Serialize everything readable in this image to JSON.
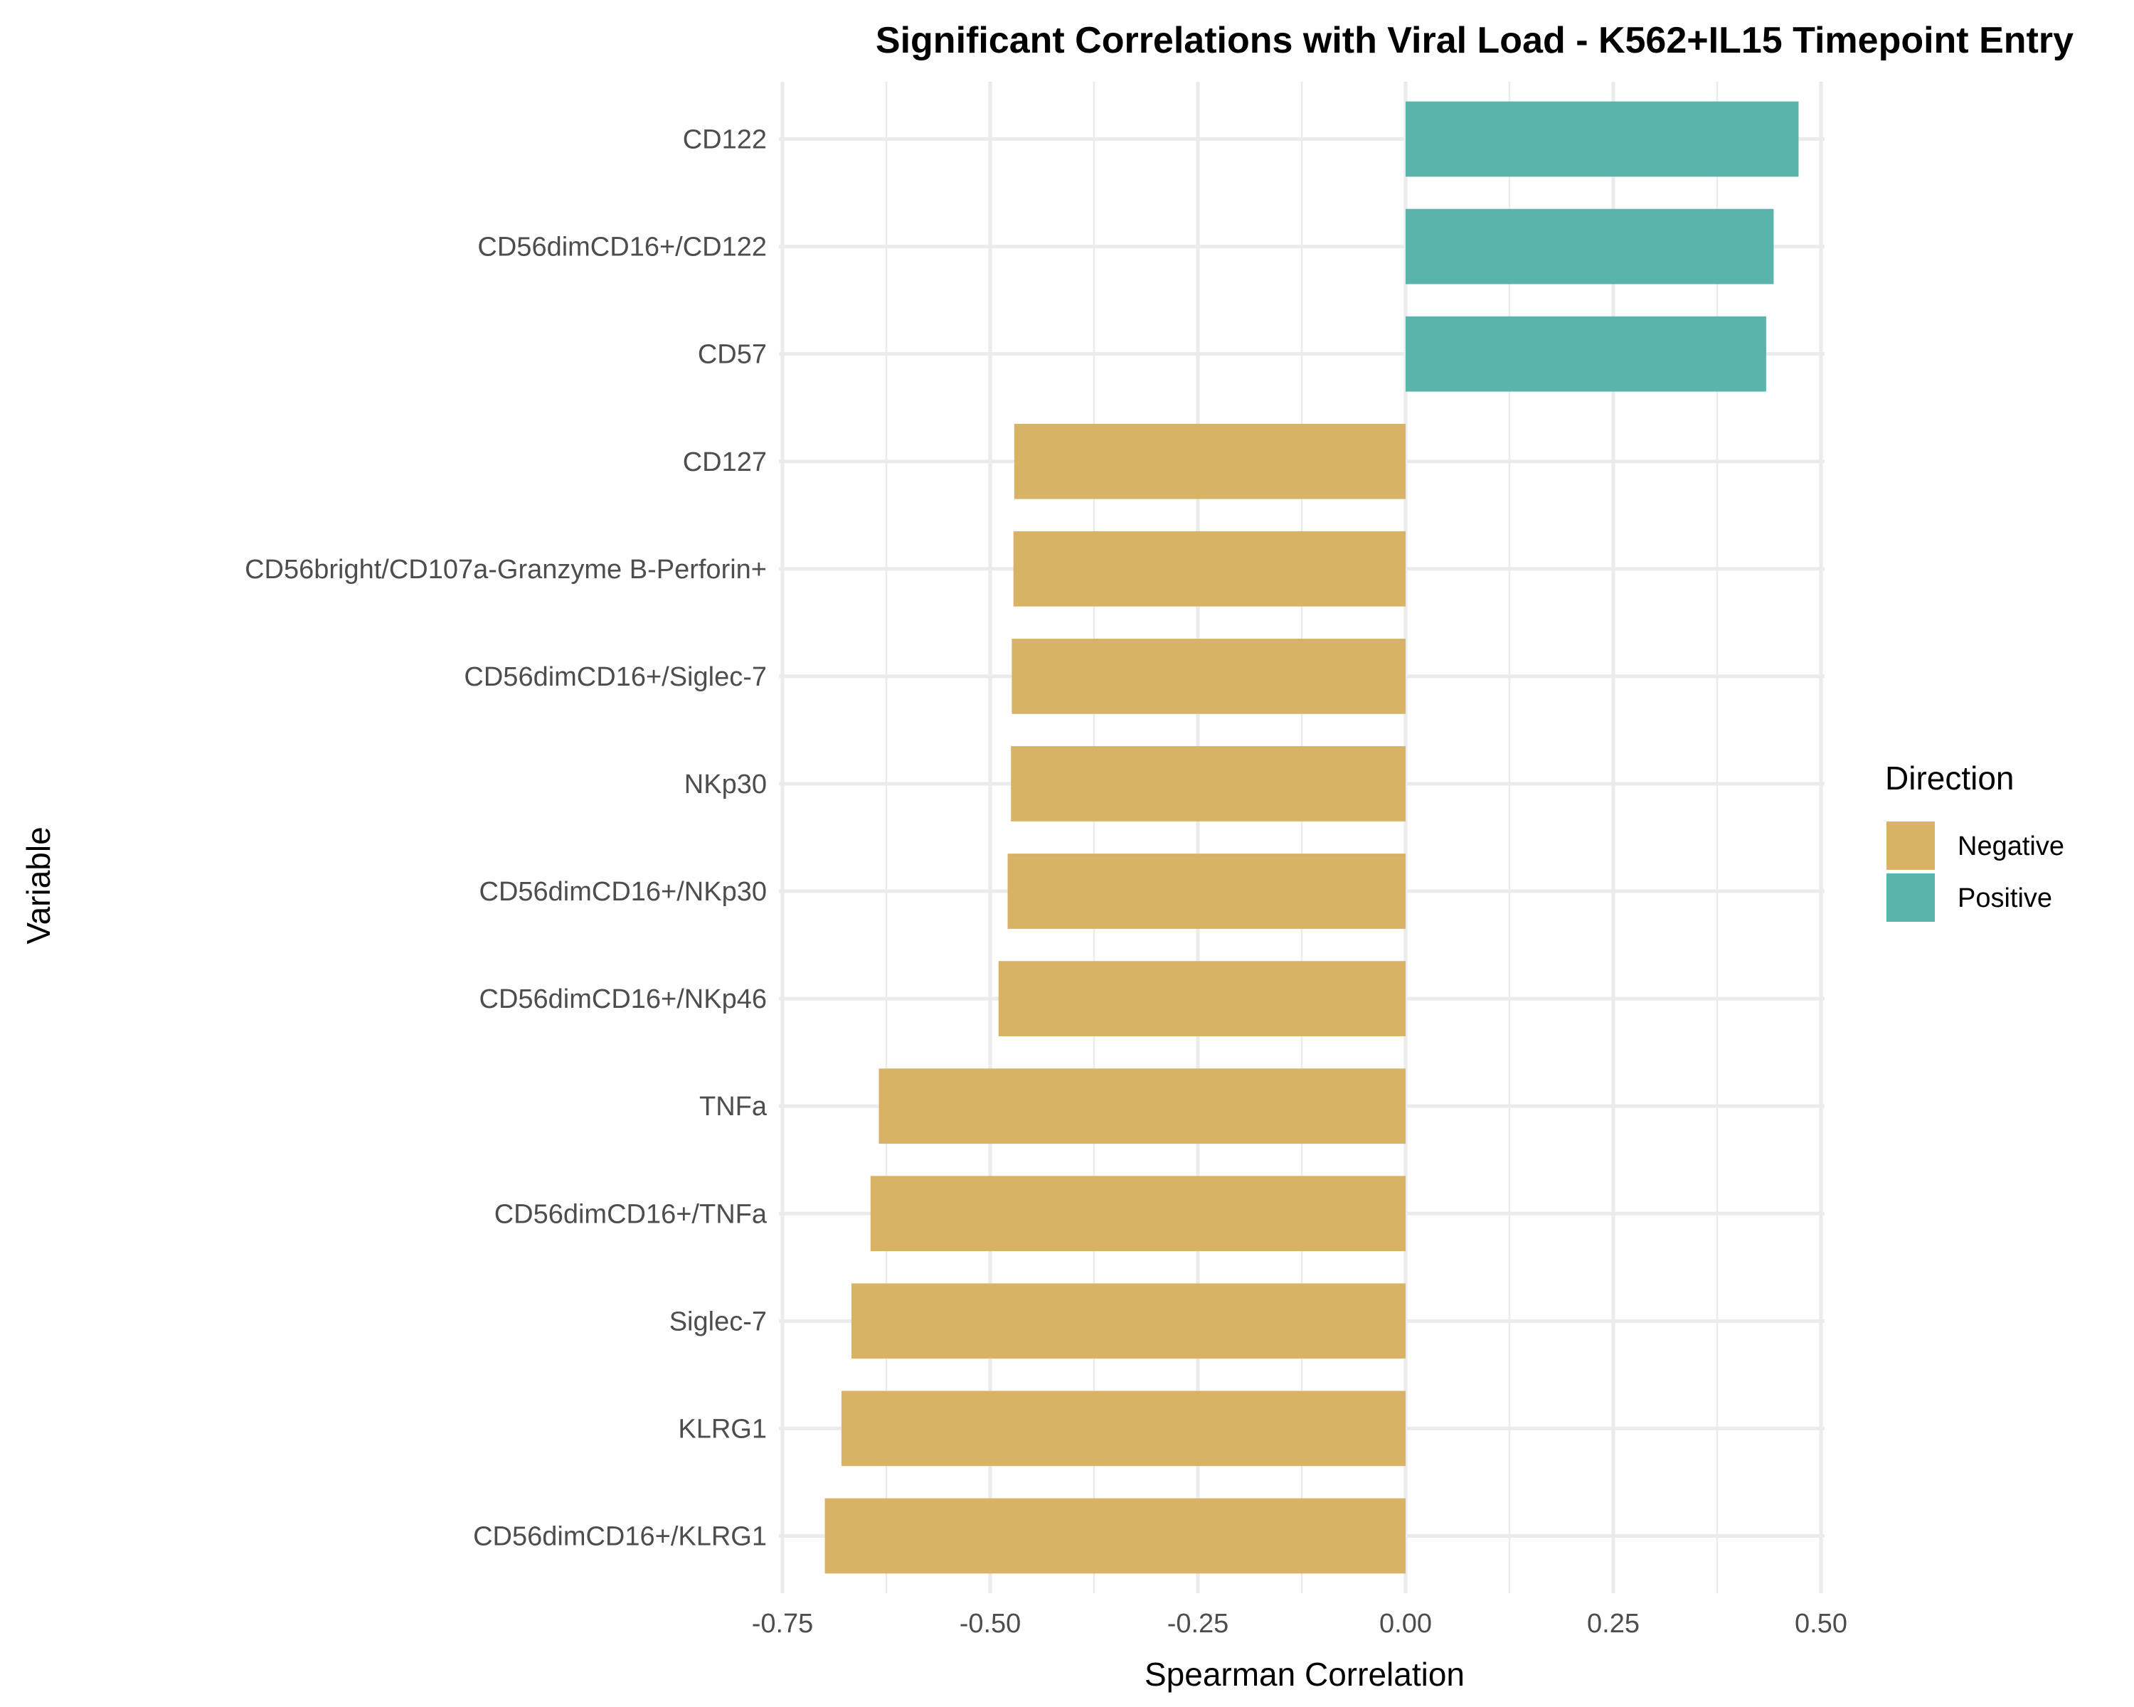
{
  "chart_data": {
    "type": "bar",
    "orientation": "horizontal",
    "title": "Significant Correlations with Viral Load - K562+IL15 Timepoint Entry",
    "xlabel": "Spearman Correlation",
    "ylabel": "Variable",
    "xlim": [
      -0.75,
      0.5
    ],
    "x_ticks": [
      "-0.75",
      "-0.50",
      "-0.25",
      "0.00",
      "0.25",
      "0.50"
    ],
    "x_tick_values": [
      -0.75,
      -0.5,
      -0.25,
      0.0,
      0.25,
      0.5
    ],
    "grid": true,
    "legend": {
      "title": "Direction",
      "position": "right",
      "entries": [
        {
          "label": "Negative",
          "color": "#d8b365"
        },
        {
          "label": "Positive",
          "color": "#5ab4ac"
        }
      ]
    },
    "categories": [
      "CD122",
      "CD56dimCD16+/CD122",
      "CD57",
      "CD127",
      "CD56bright/CD107a-Granzyme B-Perforin+",
      "CD56dimCD16+/Siglec-7",
      "NKp30",
      "CD56dimCD16+/NKp30",
      "CD56dimCD16+/NKp46",
      "TNFa",
      "CD56dimCD16+/TNFa",
      "Siglec-7",
      "KLRG1",
      "CD56dimCD16+/KLRG1"
    ],
    "values": [
      0.473,
      0.443,
      0.434,
      -0.471,
      -0.472,
      -0.474,
      -0.475,
      -0.479,
      -0.49,
      -0.634,
      -0.644,
      -0.667,
      -0.679,
      -0.699
    ],
    "direction": [
      "Positive",
      "Positive",
      "Positive",
      "Negative",
      "Negative",
      "Negative",
      "Negative",
      "Negative",
      "Negative",
      "Negative",
      "Negative",
      "Negative",
      "Negative",
      "Negative"
    ]
  }
}
